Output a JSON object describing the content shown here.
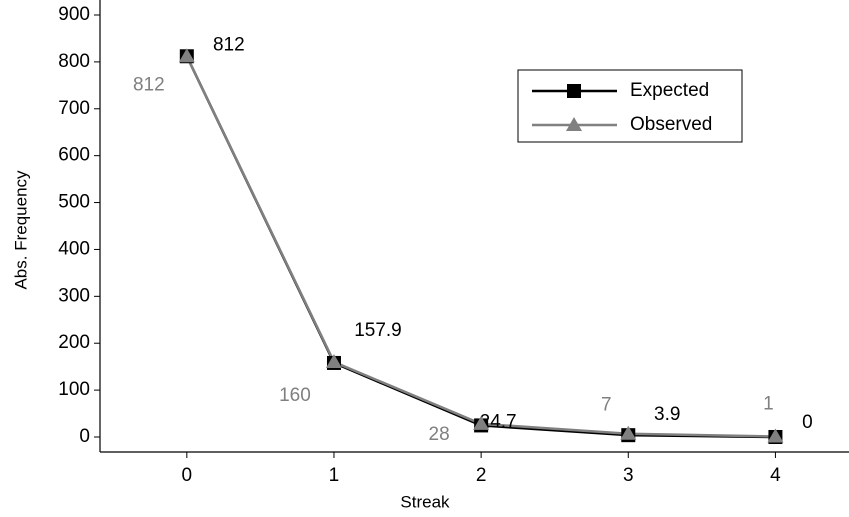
{
  "chart_data": {
    "type": "line",
    "x_label": "Streak",
    "y_label": "Abs. Frequency",
    "x": [
      0,
      1,
      2,
      3,
      4
    ],
    "series": [
      {
        "name": "Expected",
        "color": "#000000",
        "marker": "square",
        "values": [
          812,
          157.9,
          24.7,
          3.9,
          0
        ]
      },
      {
        "name": "Observed",
        "color": "#808080",
        "marker": "triangle",
        "values": [
          812,
          160,
          28,
          7,
          1
        ]
      }
    ],
    "xlim": [
      -0.59,
      4.5
    ],
    "xticks": [
      0,
      1,
      2,
      3,
      4
    ],
    "ylim": [
      -32,
      932
    ],
    "yticks": [
      0,
      100,
      200,
      300,
      400,
      500,
      600,
      700,
      800,
      900
    ],
    "grid": false,
    "legend": "upper right"
  }
}
